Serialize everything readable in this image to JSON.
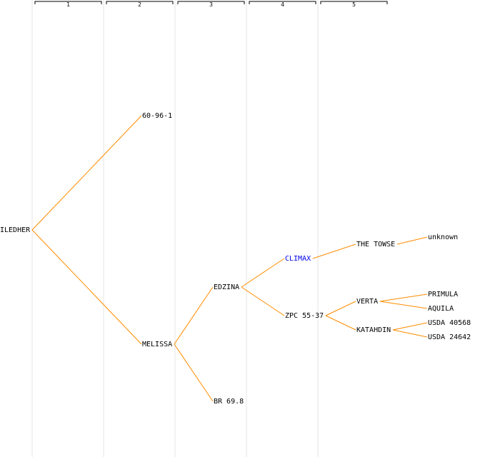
{
  "colors": {
    "edge": "#ff8c00",
    "label": "#000000",
    "link_label": "#0000ee",
    "column_band": "#f2f2f2"
  },
  "columns": [
    "1",
    "2",
    "3",
    "4",
    "5"
  ],
  "nodes": [
    {
      "id": "root",
      "label": "ILEDHER",
      "generation": 0,
      "parent": null,
      "link": false
    },
    {
      "id": "n1",
      "label": "60-96-1",
      "generation": 1,
      "parent": "root",
      "link": false
    },
    {
      "id": "n2",
      "label": "MELISSA",
      "generation": 1,
      "parent": "root",
      "link": false
    },
    {
      "id": "n3",
      "label": "EDZINA",
      "generation": 2,
      "parent": "n2",
      "link": false
    },
    {
      "id": "n4",
      "label": "BR 69.8",
      "generation": 2,
      "parent": "n2",
      "link": false
    },
    {
      "id": "n5",
      "label": "CLIMAX",
      "generation": 3,
      "parent": "n3",
      "link": true
    },
    {
      "id": "n6",
      "label": "ZPC 55-37",
      "generation": 3,
      "parent": "n3",
      "link": false
    },
    {
      "id": "n7",
      "label": "THE TOWSE",
      "generation": 4,
      "parent": "n5",
      "link": false
    },
    {
      "id": "n8",
      "label": "VERTA",
      "generation": 4,
      "parent": "n6",
      "link": false
    },
    {
      "id": "n9",
      "label": "KATAHDIN",
      "generation": 4,
      "parent": "n6",
      "link": false
    },
    {
      "id": "n10",
      "label": "unknown",
      "generation": 5,
      "parent": "n7",
      "link": false
    },
    {
      "id": "n11",
      "label": "PRIMULA",
      "generation": 5,
      "parent": "n8",
      "link": false
    },
    {
      "id": "n12",
      "label": "AQUILA",
      "generation": 5,
      "parent": "n8",
      "link": false
    },
    {
      "id": "n13",
      "label": "USDA 40568",
      "generation": 5,
      "parent": "n9",
      "link": false
    },
    {
      "id": "n14",
      "label": "USDA 24642",
      "generation": 5,
      "parent": "n9",
      "link": false
    }
  ]
}
